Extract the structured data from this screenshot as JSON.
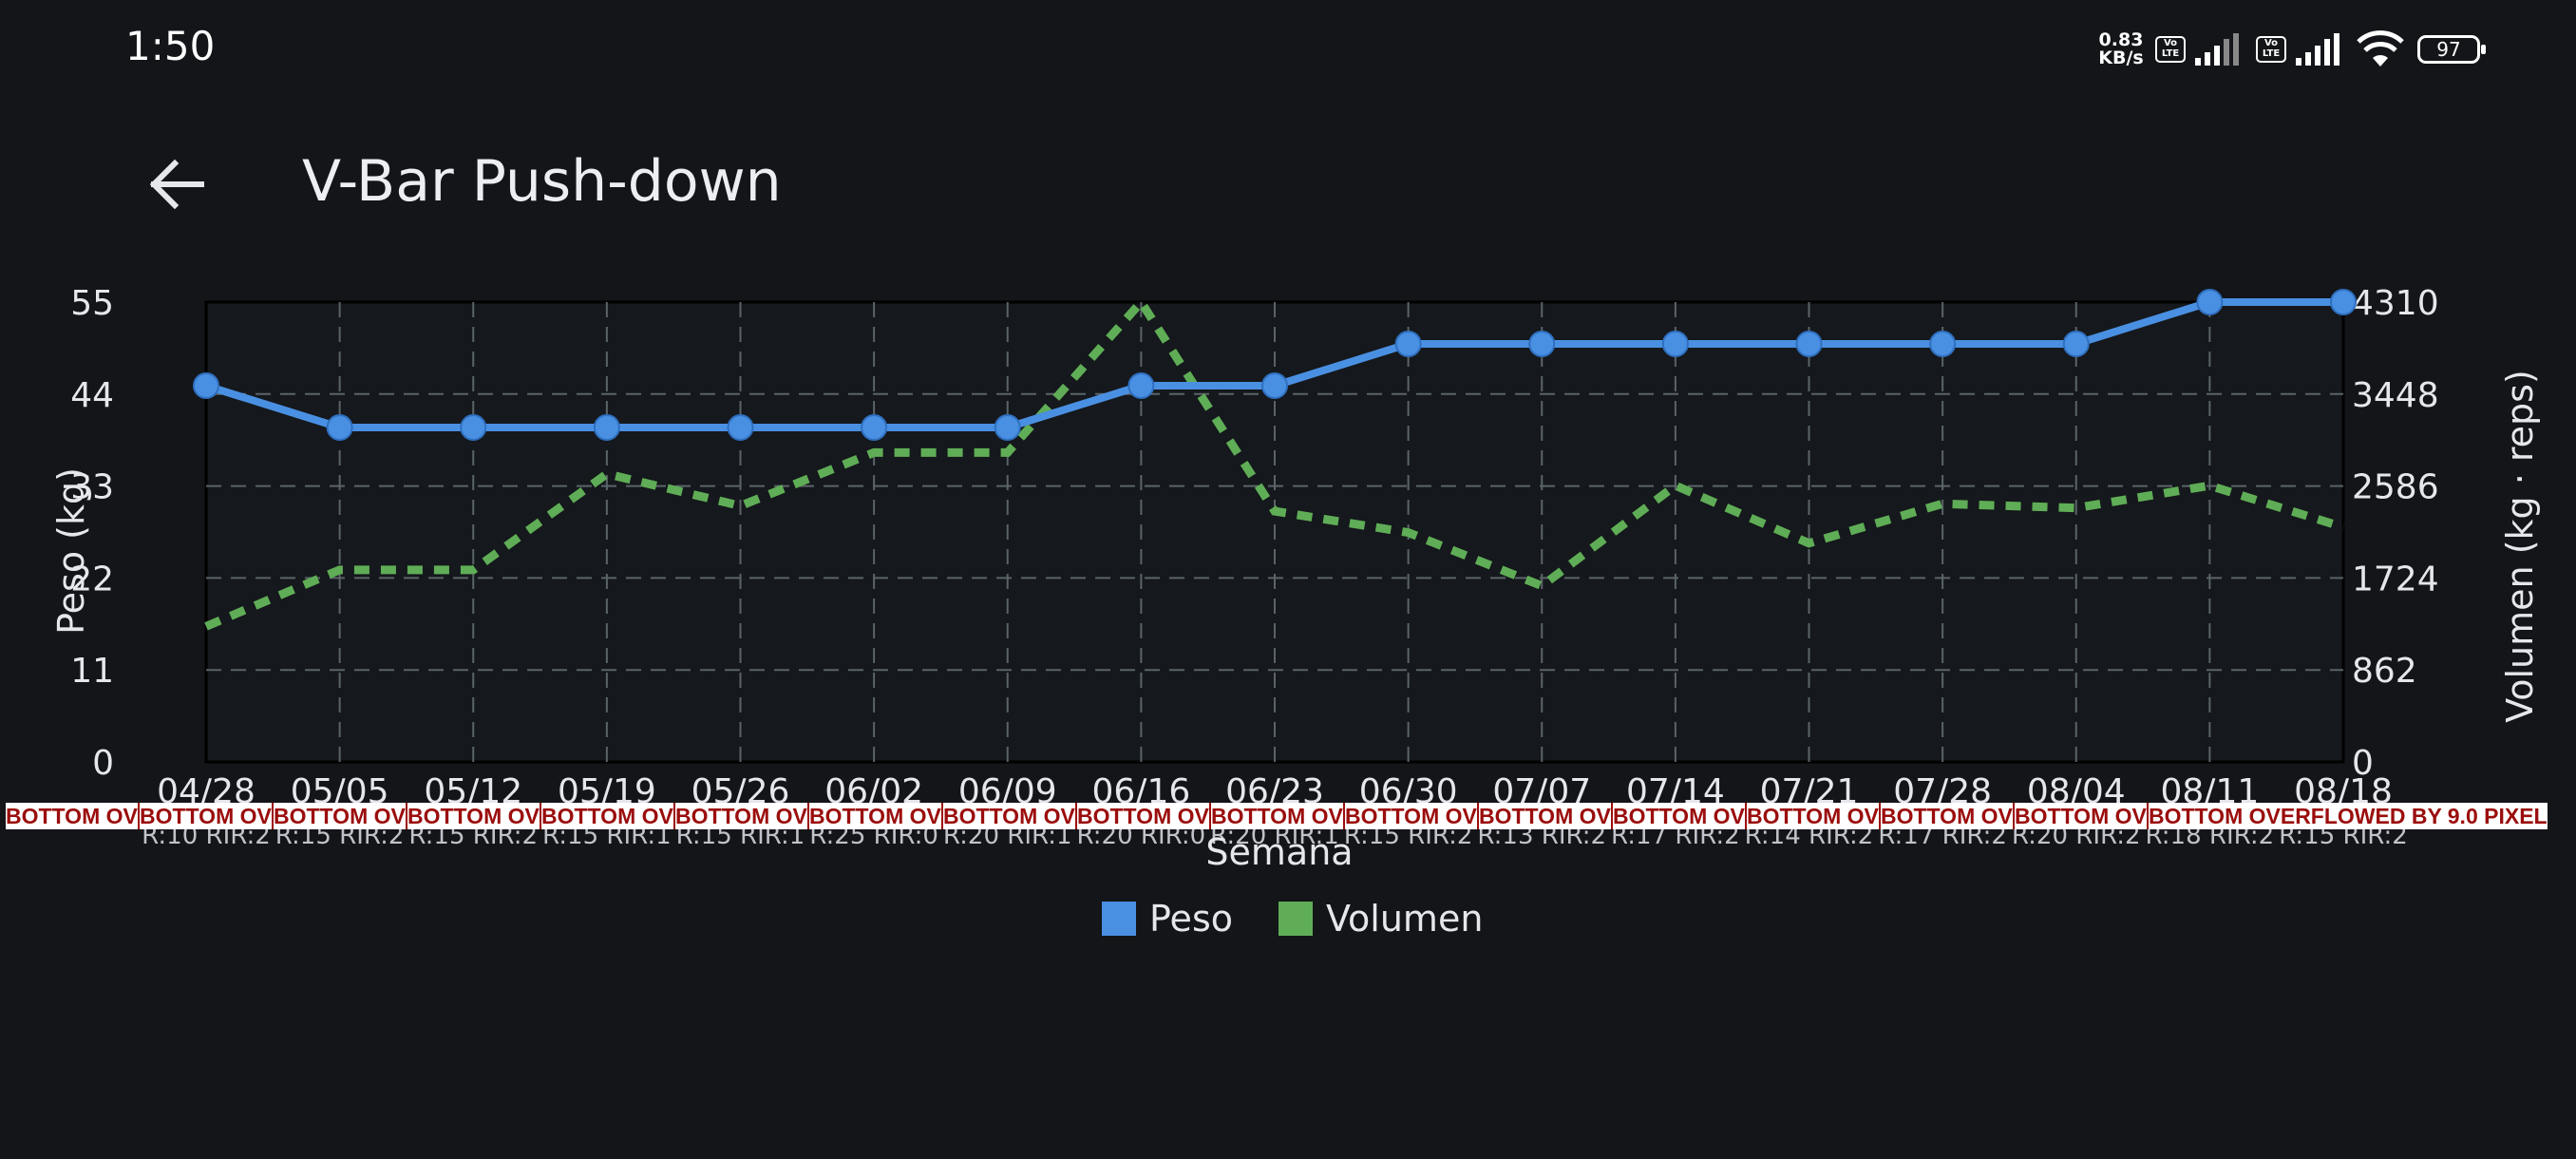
{
  "status_bar": {
    "time": "1:50",
    "net_speed": "0.83",
    "net_unit": "KB/s",
    "volte_label": "Vo LTE",
    "battery": "97",
    "icons": [
      "signal-icon",
      "wifi-icon",
      "battery-icon"
    ]
  },
  "app_bar": {
    "back_icon": "arrow-left-icon",
    "title": "V-Bar Push-down"
  },
  "colors": {
    "background": "#131519",
    "peso": "#4a90e2",
    "volumen": "#5fad56",
    "grid": "#5a6468"
  },
  "chart_data": {
    "type": "line",
    "xlabel": "Semana",
    "ylabel_left": "Peso (kg)",
    "ylabel_right": "Volumen (kg · reps)",
    "left_ticks": [
      "55",
      "44",
      "33",
      "22",
      "11",
      "0"
    ],
    "right_ticks": [
      "4310",
      "3448",
      "2586",
      "1724",
      "862",
      "0"
    ],
    "ylim_left": [
      0,
      55
    ],
    "ylim_right": [
      0,
      4310
    ],
    "grid": true,
    "legend_position": "bottom-center",
    "categories": [
      "04/28",
      "05/05",
      "05/12",
      "05/19",
      "05/26",
      "06/02",
      "06/09",
      "06/16",
      "06/23",
      "06/30",
      "07/07",
      "07/14",
      "07/21",
      "07/28",
      "08/04",
      "08/11",
      "08/18"
    ],
    "sub_labels": [
      "R:10 RIR:2",
      "R:15 RIR:2",
      "R:15 RIR:2",
      "R:15 RIR:1",
      "R:15 RIR:1",
      "R:25 RIR:0",
      "R:20 RIR:1",
      "R:20 RIR:0",
      "R:20 RIR:1",
      "R:15 RIR:2",
      "R:13 RIR:2",
      "R:17 RIR:2",
      "R:14 RIR:2",
      "R:17 RIR:2",
      "R:20 RIR:2",
      "R:18 RIR:2",
      "R:15 RIR:2"
    ],
    "series": [
      {
        "name": "Peso",
        "axis": "left",
        "style": "solid-markers",
        "values": [
          45,
          40,
          40,
          40,
          40,
          40,
          40,
          45,
          45,
          50,
          50,
          50,
          50,
          50,
          50,
          55,
          55
        ]
      },
      {
        "name": "Volumen",
        "axis": "right",
        "style": "dashed",
        "values": [
          1270,
          1800,
          1800,
          2700,
          2400,
          2900,
          2900,
          4310,
          2350,
          2150,
          1650,
          2590,
          2050,
          2420,
          2380,
          2590,
          2200
        ]
      }
    ]
  },
  "overflow_warning": {
    "short": "BOTTOM OV",
    "full": "BOTTOM OVERFLOWED BY 9.0 PIXELS"
  }
}
